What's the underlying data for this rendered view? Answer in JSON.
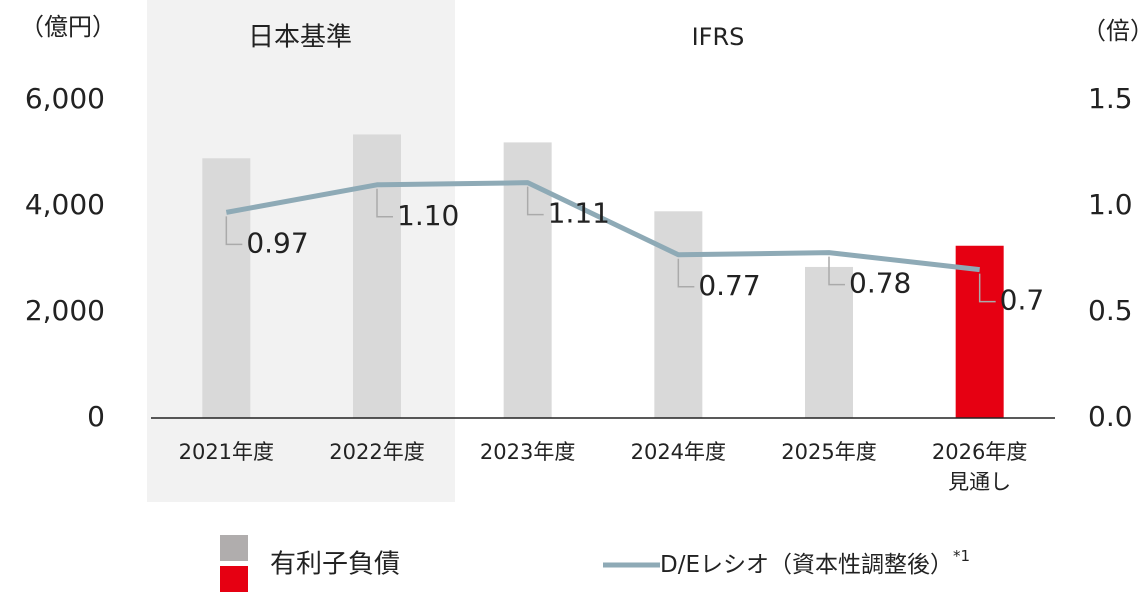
{
  "chart_data": {
    "type": "bar-line",
    "left_unit": "（億円）",
    "right_unit": "（倍）",
    "regions": [
      {
        "label": "日本基準",
        "shaded": true
      },
      {
        "label": "IFRS",
        "shaded": false
      }
    ],
    "categories": [
      "2021年度",
      "2022年度",
      "2023年度",
      "2024年度",
      "2025年度",
      "2026年度\n見通し"
    ],
    "series": [
      {
        "name": "有利子負債",
        "type": "bar",
        "colors": [
          "#d9d9d9",
          "#d9d9d9",
          "#d9d9d9",
          "#d9d9d9",
          "#d9d9d9",
          "#e60012"
        ],
        "legend_colors": [
          "#b0adad",
          "#e60012"
        ],
        "values": [
          4900,
          5350,
          5200,
          3900,
          2850,
          3250
        ]
      },
      {
        "name": "D/Eレシオ（資本性調整後）",
        "note": "*1",
        "type": "line",
        "axis": "y2",
        "color": "#8eaab6",
        "values": [
          0.97,
          1.1,
          1.11,
          0.77,
          0.78,
          0.7
        ],
        "value_labels": [
          "0.97",
          "1.10",
          "1.11",
          "0.77",
          "0.78",
          "0.7"
        ]
      }
    ],
    "ylim": [
      0,
      6000
    ],
    "yticks": [
      0,
      {
        "value": 2000,
        "label": "2,000"
      },
      {
        "value": 4000,
        "label": "4,000"
      },
      {
        "value": 6000,
        "label": "6,000"
      }
    ],
    "y2lim": [
      0,
      1.5
    ],
    "y2ticks": [
      {
        "value": 0,
        "label": "0.0"
      },
      0.5,
      {
        "value": 1,
        "label": "1.0"
      },
      1.5
    ]
  }
}
